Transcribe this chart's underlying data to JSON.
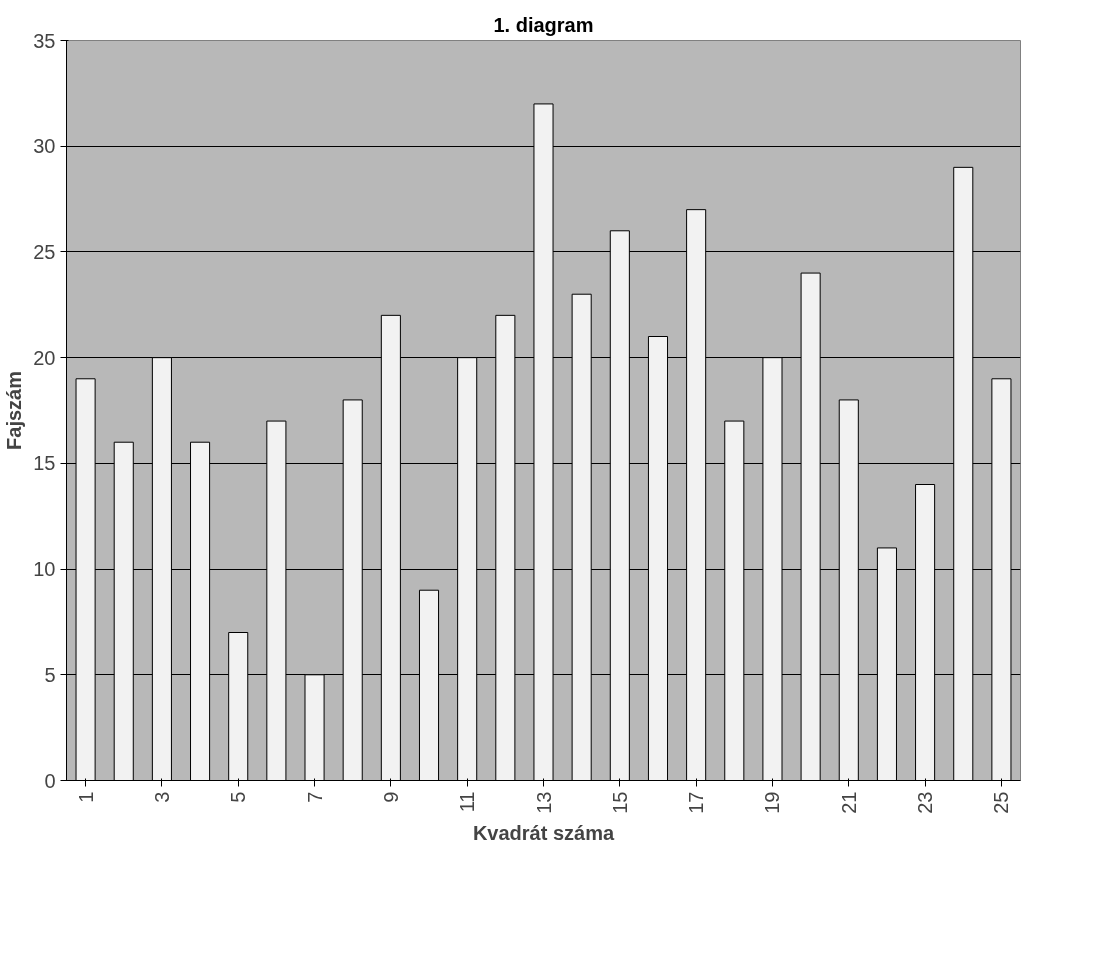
{
  "chart_data": {
    "type": "bar",
    "title": "1. diagram",
    "xlabel": "Kvadrát száma",
    "ylabel": "Fajszám",
    "categories": [
      "1",
      null,
      "3",
      null,
      "5",
      null,
      "7",
      null,
      "9",
      null,
      "11",
      null,
      "13",
      null,
      "15",
      null,
      "17",
      null,
      "19",
      null,
      "21",
      null,
      "23",
      null,
      "25"
    ],
    "values": [
      19,
      16,
      20,
      16,
      7,
      17,
      5,
      18,
      22,
      9,
      20,
      22,
      32,
      23,
      26,
      21,
      27,
      17,
      20,
      24,
      18,
      11,
      14,
      29,
      19
    ],
    "color": "#f2f2f2",
    "ylim": [
      0,
      35
    ],
    "yticks": [
      0,
      5,
      10,
      15,
      20,
      25,
      30,
      35
    ],
    "grid": "y"
  }
}
